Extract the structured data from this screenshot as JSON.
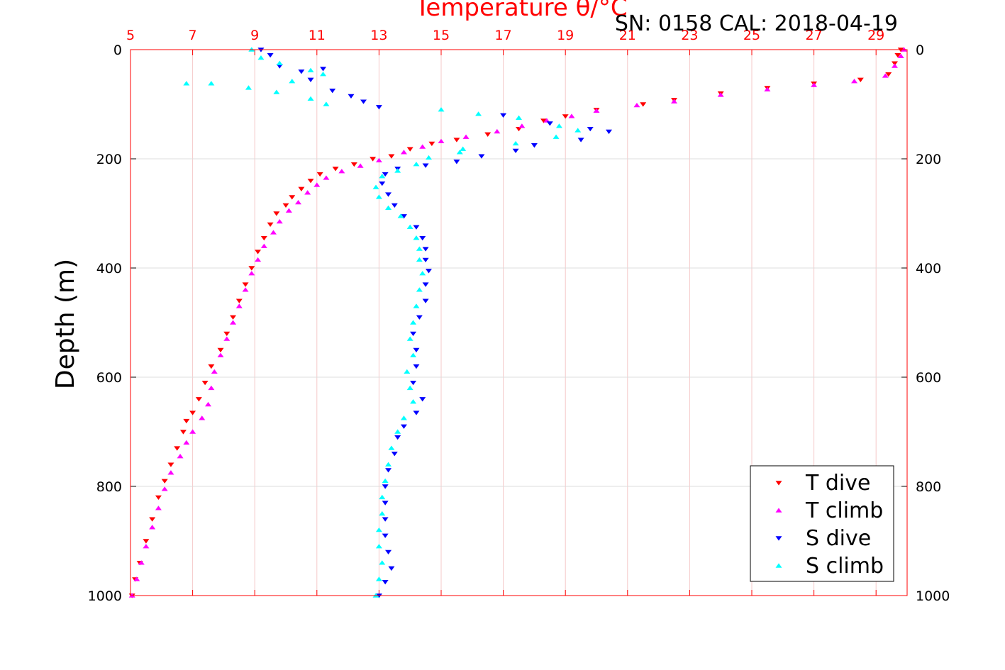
{
  "chart_data": {
    "type": "scatter",
    "title": "Temperature θ/°C",
    "annotation": "SN: 0158  CAL: 2018-04-19",
    "xlabel": "Temperature θ/°C",
    "ylabel": "Depth (m)",
    "xlim": [
      5,
      30
    ],
    "ylim": [
      1000,
      0
    ],
    "y_reversed": true,
    "x_ticks": [
      5,
      7,
      9,
      11,
      13,
      15,
      17,
      19,
      21,
      23,
      25,
      27,
      29
    ],
    "x_tick_labels": [
      "5",
      "7",
      "9",
      "11",
      "13",
      "15",
      "17",
      "19",
      "21",
      "23",
      "25",
      "27",
      "29"
    ],
    "y_ticks": [
      0,
      200,
      400,
      600,
      800,
      1000
    ],
    "y_tick_labels": [
      "0",
      "200",
      "400",
      "600",
      "800",
      "1000"
    ],
    "grid": true,
    "legend_position": "bottom-right",
    "axis_color": "#ff0000",
    "series": [
      {
        "name": "T dive",
        "color": "#ff0000",
        "marker": "triangle-down",
        "points": [
          [
            29.8,
            0
          ],
          [
            29.7,
            10
          ],
          [
            29.6,
            25
          ],
          [
            29.4,
            45
          ],
          [
            28.5,
            55
          ],
          [
            27,
            62
          ],
          [
            25.5,
            70
          ],
          [
            24,
            80
          ],
          [
            22.5,
            92
          ],
          [
            21.5,
            100
          ],
          [
            20,
            110
          ],
          [
            19,
            122
          ],
          [
            18.3,
            130
          ],
          [
            17.5,
            145
          ],
          [
            16.5,
            155
          ],
          [
            15.5,
            165
          ],
          [
            14.7,
            172
          ],
          [
            14,
            182
          ],
          [
            13.4,
            195
          ],
          [
            12.8,
            200
          ],
          [
            12.2,
            210
          ],
          [
            11.6,
            218
          ],
          [
            11.1,
            228
          ],
          [
            10.8,
            240
          ],
          [
            10.5,
            255
          ],
          [
            10.2,
            270
          ],
          [
            10,
            285
          ],
          [
            9.7,
            300
          ],
          [
            9.5,
            320
          ],
          [
            9.3,
            345
          ],
          [
            9.1,
            370
          ],
          [
            8.9,
            400
          ],
          [
            8.7,
            430
          ],
          [
            8.5,
            460
          ],
          [
            8.3,
            490
          ],
          [
            8.1,
            520
          ],
          [
            7.9,
            550
          ],
          [
            7.6,
            580
          ],
          [
            7.4,
            610
          ],
          [
            7.2,
            640
          ],
          [
            7,
            665
          ],
          [
            6.8,
            680
          ],
          [
            6.7,
            700
          ],
          [
            6.5,
            730
          ],
          [
            6.3,
            760
          ],
          [
            6.1,
            790
          ],
          [
            5.9,
            820
          ],
          [
            5.7,
            860
          ],
          [
            5.5,
            900
          ],
          [
            5.3,
            940
          ],
          [
            5.15,
            970
          ],
          [
            5.05,
            1000
          ]
        ]
      },
      {
        "name": "T climb",
        "color": "#ff00ff",
        "marker": "triangle-up",
        "points": [
          [
            29.9,
            0
          ],
          [
            29.8,
            12
          ],
          [
            29.6,
            30
          ],
          [
            29.3,
            48
          ],
          [
            28.3,
            58
          ],
          [
            27,
            65
          ],
          [
            25.5,
            73
          ],
          [
            24,
            83
          ],
          [
            22.5,
            95
          ],
          [
            21.3,
            102
          ],
          [
            20,
            112
          ],
          [
            19.2,
            122
          ],
          [
            18.4,
            130
          ],
          [
            17.6,
            140
          ],
          [
            16.8,
            150
          ],
          [
            15.8,
            160
          ],
          [
            15,
            168
          ],
          [
            14.4,
            178
          ],
          [
            13.8,
            188
          ],
          [
            13,
            203
          ],
          [
            12.4,
            213
          ],
          [
            11.8,
            223
          ],
          [
            11.3,
            235
          ],
          [
            11,
            248
          ],
          [
            10.7,
            262
          ],
          [
            10.4,
            280
          ],
          [
            10.1,
            295
          ],
          [
            9.8,
            315
          ],
          [
            9.6,
            335
          ],
          [
            9.3,
            360
          ],
          [
            9.1,
            385
          ],
          [
            8.9,
            410
          ],
          [
            8.7,
            440
          ],
          [
            8.5,
            470
          ],
          [
            8.3,
            500
          ],
          [
            8.1,
            530
          ],
          [
            7.9,
            560
          ],
          [
            7.7,
            590
          ],
          [
            7.6,
            620
          ],
          [
            7.5,
            650
          ],
          [
            7.3,
            675
          ],
          [
            7,
            700
          ],
          [
            6.8,
            720
          ],
          [
            6.6,
            745
          ],
          [
            6.3,
            775
          ],
          [
            6.1,
            805
          ],
          [
            5.9,
            840
          ],
          [
            5.7,
            875
          ],
          [
            5.5,
            910
          ],
          [
            5.35,
            940
          ],
          [
            5.2,
            970
          ],
          [
            5.05,
            1000
          ]
        ]
      },
      {
        "name": "S dive",
        "color": "#0000ff",
        "marker": "triangle-down",
        "points": [
          [
            9.2,
            0
          ],
          [
            9.5,
            10
          ],
          [
            9.8,
            30
          ],
          [
            10.5,
            40
          ],
          [
            11.2,
            35
          ],
          [
            10.8,
            55
          ],
          [
            11.5,
            75
          ],
          [
            12.1,
            85
          ],
          [
            12.5,
            95
          ],
          [
            13,
            105
          ],
          [
            17,
            120
          ],
          [
            18.5,
            135
          ],
          [
            19.8,
            145
          ],
          [
            20.4,
            150
          ],
          [
            19.5,
            165
          ],
          [
            18,
            175
          ],
          [
            17.4,
            185
          ],
          [
            16.3,
            195
          ],
          [
            15.5,
            205
          ],
          [
            14.5,
            212
          ],
          [
            13.6,
            218
          ],
          [
            13.2,
            228
          ],
          [
            13.1,
            245
          ],
          [
            13.3,
            265
          ],
          [
            13.5,
            285
          ],
          [
            13.8,
            305
          ],
          [
            14.2,
            325
          ],
          [
            14.4,
            345
          ],
          [
            14.5,
            365
          ],
          [
            14.5,
            385
          ],
          [
            14.6,
            405
          ],
          [
            14.5,
            430
          ],
          [
            14.5,
            460
          ],
          [
            14.3,
            490
          ],
          [
            14.1,
            520
          ],
          [
            14.2,
            550
          ],
          [
            14.2,
            580
          ],
          [
            14.1,
            610
          ],
          [
            14.4,
            640
          ],
          [
            14.2,
            665
          ],
          [
            13.8,
            690
          ],
          [
            13.6,
            710
          ],
          [
            13.5,
            740
          ],
          [
            13.3,
            770
          ],
          [
            13.2,
            800
          ],
          [
            13.2,
            830
          ],
          [
            13.2,
            860
          ],
          [
            13.2,
            890
          ],
          [
            13.3,
            920
          ],
          [
            13.4,
            950
          ],
          [
            13.2,
            975
          ],
          [
            13,
            1000
          ]
        ]
      },
      {
        "name": "S climb",
        "color": "#00ffff",
        "marker": "triangle-up",
        "points": [
          [
            8.9,
            0
          ],
          [
            9.2,
            15
          ],
          [
            9.8,
            25
          ],
          [
            10.8,
            38
          ],
          [
            11.2,
            45
          ],
          [
            10.2,
            58
          ],
          [
            6.8,
            62
          ],
          [
            7.6,
            62
          ],
          [
            8.8,
            70
          ],
          [
            9.7,
            78
          ],
          [
            10.8,
            90
          ],
          [
            11.3,
            100
          ],
          [
            15,
            110
          ],
          [
            16.2,
            118
          ],
          [
            17.5,
            125
          ],
          [
            18.8,
            140
          ],
          [
            19.4,
            148
          ],
          [
            18.7,
            160
          ],
          [
            17.4,
            172
          ],
          [
            15.7,
            182
          ],
          [
            15.6,
            188
          ],
          [
            14.6,
            198
          ],
          [
            14.2,
            210
          ],
          [
            13.6,
            222
          ],
          [
            13.1,
            232
          ],
          [
            12.9,
            252
          ],
          [
            13,
            270
          ],
          [
            13.3,
            290
          ],
          [
            13.7,
            305
          ],
          [
            14,
            325
          ],
          [
            14.2,
            345
          ],
          [
            14.3,
            365
          ],
          [
            14.3,
            385
          ],
          [
            14.4,
            410
          ],
          [
            14.3,
            440
          ],
          [
            14.2,
            470
          ],
          [
            14.1,
            500
          ],
          [
            14,
            530
          ],
          [
            14.1,
            560
          ],
          [
            13.9,
            590
          ],
          [
            14,
            620
          ],
          [
            14.1,
            645
          ],
          [
            13.8,
            675
          ],
          [
            13.6,
            700
          ],
          [
            13.4,
            730
          ],
          [
            13.3,
            760
          ],
          [
            13.2,
            790
          ],
          [
            13.1,
            820
          ],
          [
            13.1,
            850
          ],
          [
            13,
            880
          ],
          [
            13,
            910
          ],
          [
            13.1,
            940
          ],
          [
            13,
            970
          ],
          [
            12.9,
            1000
          ]
        ]
      }
    ]
  }
}
